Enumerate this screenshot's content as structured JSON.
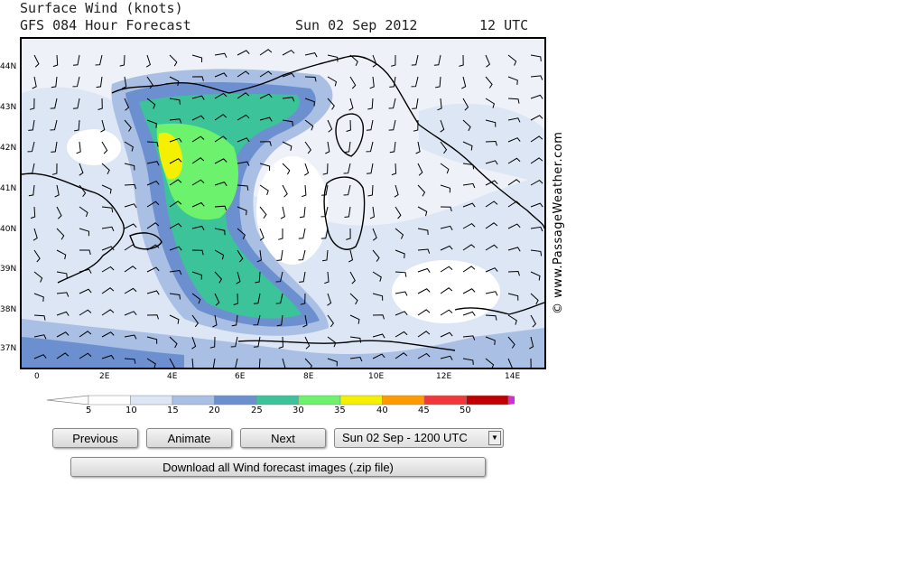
{
  "header": {
    "title": "Surface Wind (knots)",
    "subtitle": "GFS 084 Hour Forecast",
    "date": "Sun 02 Sep 2012",
    "time": "12 UTC"
  },
  "map": {
    "lat_labels": [
      "44N",
      "43N",
      "42N",
      "41N",
      "40N",
      "39N",
      "38N",
      "37N"
    ],
    "lon_labels": [
      "0",
      "2E",
      "4E",
      "6E",
      "8E",
      "10E",
      "12E",
      "14E"
    ],
    "credit": "© www.PassageWeather.com"
  },
  "color_scale": {
    "values": [
      "5",
      "10",
      "15",
      "20",
      "25",
      "30",
      "35",
      "40",
      "45",
      "50"
    ],
    "colors": [
      "#ffffff",
      "#dde6f4",
      "#a9bfe3",
      "#6c8fd0",
      "#3cc39a",
      "#6cf26c",
      "#f5f000",
      "#ff9a00",
      "#f0383a",
      "#c00000",
      "#d030d0"
    ]
  },
  "controls": {
    "previous": "Previous",
    "animate": "Animate",
    "next": "Next",
    "forecast_select_value": "Sun 02 Sep - 1200 UTC",
    "download": "Download all Wind forecast images (.zip file)"
  }
}
